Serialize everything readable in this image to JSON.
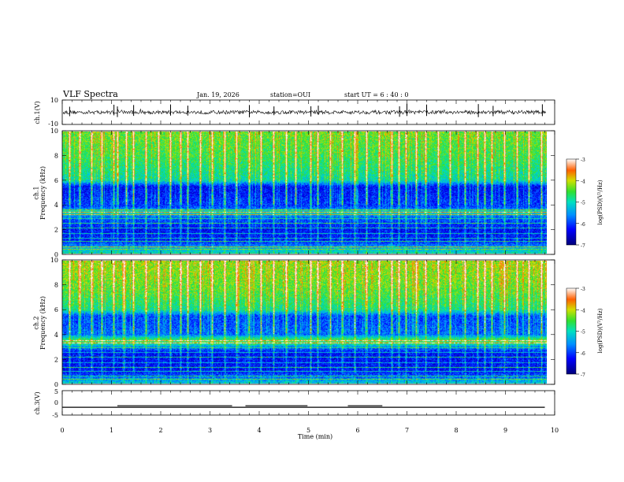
{
  "header": {
    "title": "VLF Spectra",
    "date": "Jan. 19, 2026",
    "station": "station=OUI",
    "start": "start UT =  6 : 40 : 0"
  },
  "chart_data": [
    {
      "type": "line",
      "name": "ch1-waveform",
      "ylabel": "ch.1(V)",
      "ylim": [
        -10,
        10
      ],
      "yticks": [
        "10",
        "-10"
      ],
      "xlim": [
        0,
        10
      ],
      "baseline": 0,
      "noise_amplitude": 0.7,
      "spikes": [
        0.15,
        1.05,
        1.12,
        1.45,
        2.2,
        2.55,
        3.8,
        4.3,
        5.05,
        5.2,
        6.85,
        7.0,
        7.4,
        8.45,
        8.75,
        9.75
      ]
    },
    {
      "type": "heatmap",
      "name": "ch1-spectrogram",
      "ylabel": "ch.1\nFrequency  (kHz)",
      "xlim": [
        0,
        9.85
      ],
      "ylim": [
        0,
        10
      ],
      "yticks": [
        "0",
        "2",
        "4",
        "6",
        "8",
        "10"
      ],
      "colorbar": {
        "label": "log(PSD)(V²/Hz)",
        "ticks": [
          "-3",
          "-4",
          "-5",
          "-6",
          "-7"
        ],
        "range": [
          -7,
          -3
        ]
      },
      "band_profile_khz": [
        [
          0,
          -5.0
        ],
        [
          0.5,
          -5.5
        ],
        [
          1,
          -6.2
        ],
        [
          2,
          -6.3
        ],
        [
          3,
          -5.8
        ],
        [
          3.4,
          -5.0
        ],
        [
          3.8,
          -6.0
        ],
        [
          5.5,
          -6.3
        ],
        [
          6.0,
          -5.0
        ],
        [
          7,
          -4.8
        ],
        [
          8,
          -4.6
        ],
        [
          10,
          -4.4
        ]
      ],
      "tone_lines_khz": [
        0.3,
        0.55,
        1.0,
        1.25,
        1.6,
        2.05,
        2.45,
        2.85,
        3.15,
        3.35,
        3.55
      ],
      "spheric_times_min": [
        0.15,
        0.35,
        0.6,
        0.8,
        1.05,
        1.12,
        1.3,
        1.45,
        1.7,
        1.95,
        2.2,
        2.4,
        2.55,
        2.8,
        3.05,
        3.3,
        3.55,
        3.8,
        4.05,
        4.3,
        4.55,
        4.75,
        5.05,
        5.2,
        5.45,
        5.7,
        5.95,
        6.2,
        6.45,
        6.7,
        6.85,
        7.0,
        7.2,
        7.4,
        7.65,
        7.9,
        8.2,
        8.45,
        8.6,
        8.75,
        9.0,
        9.25,
        9.5,
        9.75
      ]
    },
    {
      "type": "heatmap",
      "name": "ch2-spectrogram",
      "ylabel": "ch.2\nFrequency  (kHz)",
      "xlim": [
        0,
        9.85
      ],
      "ylim": [
        0,
        10
      ],
      "yticks": [
        "0",
        "2",
        "4",
        "6",
        "8",
        "10"
      ],
      "colorbar": {
        "label": "log(PSD)(V²/Hz)",
        "ticks": [
          "-3",
          "-4",
          "-5",
          "-6",
          "-7"
        ],
        "range": [
          -7,
          -3
        ]
      },
      "band_profile_khz": [
        [
          0,
          -5.2
        ],
        [
          0.5,
          -5.8
        ],
        [
          1,
          -6.3
        ],
        [
          2.5,
          -6.3
        ],
        [
          3.0,
          -5.6
        ],
        [
          3.3,
          -4.6
        ],
        [
          3.6,
          -4.7
        ],
        [
          4.0,
          -5.8
        ],
        [
          5.5,
          -6.0
        ],
        [
          6.0,
          -4.9
        ],
        [
          7,
          -4.6
        ],
        [
          8,
          -4.4
        ],
        [
          10,
          -4.2
        ]
      ],
      "tone_lines_khz": [
        0.3,
        0.6,
        1.0,
        1.3,
        1.7,
        2.1,
        2.5,
        2.9,
        3.3,
        3.5
      ],
      "spheric_times_min": [
        0.15,
        0.35,
        0.6,
        0.8,
        1.05,
        1.25,
        1.45,
        1.7,
        1.95,
        2.2,
        2.4,
        2.55,
        2.8,
        3.05,
        3.3,
        3.55,
        3.8,
        4.05,
        4.3,
        4.55,
        4.75,
        5.05,
        5.2,
        5.45,
        5.7,
        5.95,
        6.2,
        6.45,
        6.7,
        6.85,
        7.0,
        7.2,
        7.4,
        7.65,
        7.9,
        8.2,
        8.45,
        8.6,
        8.75,
        9.0,
        9.25,
        9.5,
        9.75
      ]
    },
    {
      "type": "line",
      "name": "ch3-signal",
      "ylabel": "ch.3(V)",
      "ylim": [
        -5,
        5
      ],
      "yticks": [
        "5",
        "0",
        "-5"
      ],
      "xlim": [
        0,
        10
      ],
      "xticks": [
        "0",
        "1",
        "2",
        "3",
        "4",
        "5",
        "6",
        "7",
        "8",
        "9",
        "10"
      ],
      "xlabel": "Time  (min)",
      "baseline_v": -1.8,
      "high_segments": [
        [
          1.12,
          3.45
        ],
        [
          3.72,
          4.98
        ],
        [
          5.8,
          6.5
        ]
      ],
      "high_v": -1.2
    }
  ]
}
